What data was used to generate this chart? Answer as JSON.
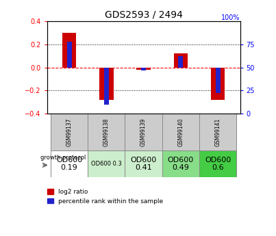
{
  "title": "GDS2593 / 2494",
  "samples": [
    "GSM99137",
    "GSM99138",
    "GSM99139",
    "GSM99140",
    "GSM99141"
  ],
  "log2_ratio": [
    0.3,
    -0.28,
    -0.02,
    0.12,
    -0.28
  ],
  "percentile_rank": [
    78,
    10,
    47,
    62,
    22
  ],
  "ylim_left": [
    -0.4,
    0.4
  ],
  "ylim_right": [
    0,
    100
  ],
  "bar_color_red": "#cc0000",
  "bar_color_blue": "#2222cc",
  "growth_protocol": [
    "OD600\n0.19",
    "OD600 0.3",
    "OD600\n0.41",
    "OD600\n0.49",
    "OD600\n0.6"
  ],
  "gp_colors": [
    "#ffffff",
    "#cceecc",
    "#cceecc",
    "#88dd88",
    "#44cc44"
  ],
  "gp_fontsize": [
    8,
    6,
    8,
    8,
    8
  ]
}
